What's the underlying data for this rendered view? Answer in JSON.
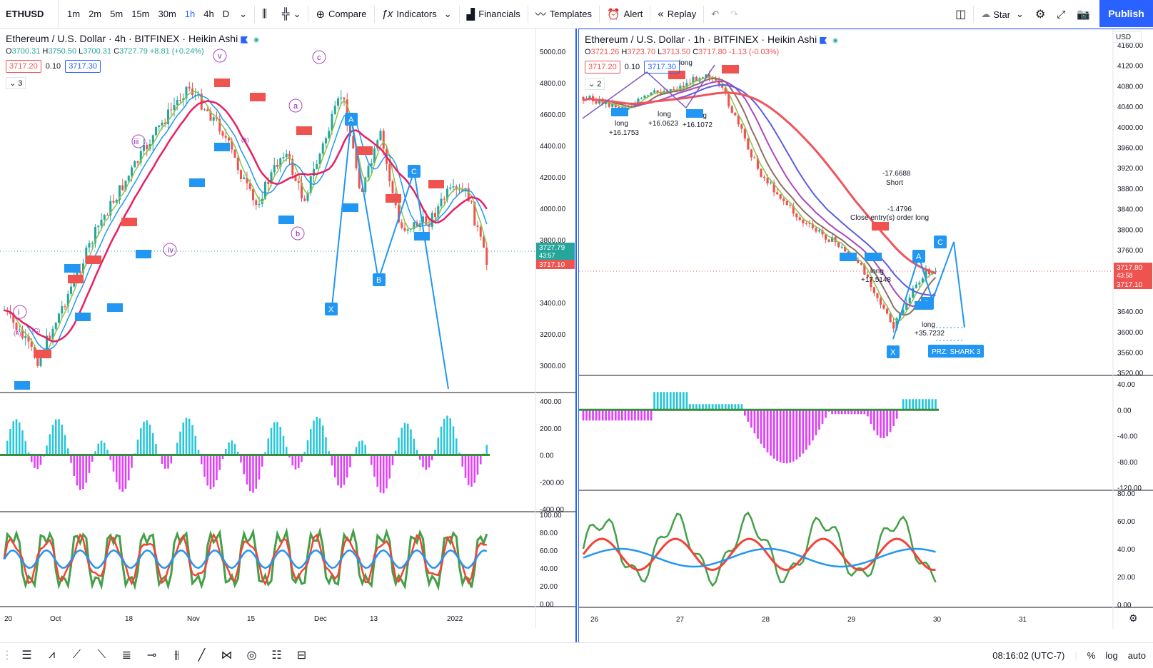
{
  "toolbar": {
    "symbol": "ETHUSD",
    "intervals": [
      "1m",
      "2m",
      "5m",
      "15m",
      "30m",
      "1h",
      "4h",
      "D"
    ],
    "active_interval": "1h",
    "compare": "Compare",
    "indicators": "Indicators",
    "financials": "Financials",
    "templates": "Templates",
    "alert": "Alert",
    "replay": "Replay",
    "star": "Star",
    "publish": "Publish"
  },
  "left_chart": {
    "title": "Ethereum / U.S. Dollar · 4h · BITFINEX · Heikin Ashi",
    "ohlc": {
      "o": "3700.31",
      "h": "3750.50",
      "l": "3700.31",
      "c": "3727.79",
      "chg": "+8.81 (+0.24%)"
    },
    "bid": "3717.20",
    "spread": "0.10",
    "ask": "3717.30",
    "indicator_count": "3",
    "price_ticks": [
      "5000.00",
      "4800.00",
      "4600.00",
      "4400.00",
      "4200.00",
      "4000.00",
      "3800.00",
      "3400.00",
      "3200.00",
      "3000.00"
    ],
    "last_price": "3727.79",
    "countdown": "43:57",
    "bid_line": "3717.10",
    "macd_ticks": [
      "400.00",
      "200.00",
      "0.00",
      "-200.00",
      "-400.00"
    ],
    "rsi_ticks": [
      "100.00",
      "80.00",
      "60.00",
      "40.00",
      "20.00",
      "0.00"
    ],
    "time_ticks": [
      "20",
      "Oct",
      "18",
      "Nov",
      "15",
      "Dec",
      "13",
      "2022"
    ],
    "wave_labels": [
      "v",
      "c",
      "iii",
      "a",
      "iv",
      "b",
      "i",
      "(A)",
      "(C)",
      "(B)"
    ],
    "pattern_labels": [
      "A",
      "B",
      "C",
      "X"
    ]
  },
  "right_chart": {
    "title": "Ethereum / U.S. Dollar · 1h · BITFINEX · Heikin Ashi",
    "ohlc": {
      "o": "3721.26",
      "h": "3723.70",
      "l": "3713.50",
      "c": "3717.80",
      "chg": "-1.13 (-0.03%)"
    },
    "bid": "3717.20",
    "spread": "0.10",
    "ask": "3717.30",
    "indicator_count": "2",
    "currency": "USD",
    "price_ticks": [
      "4160.00",
      "4120.00",
      "4080.00",
      "4040.00",
      "4000.00",
      "3960.00",
      "3920.00",
      "3880.00",
      "3840.00",
      "3800.00",
      "3760.00",
      "3640.00",
      "3600.00",
      "3560.00",
      "3520.00"
    ],
    "last_price": "3717.80",
    "countdown": "43:58",
    "bid_line": "3717.10",
    "macd_ticks": [
      "40.00",
      "0.00",
      "-40.00",
      "-80.00",
      "-120.00"
    ],
    "rsi_ticks": [
      "80.00",
      "60.00",
      "40.00",
      "20.00",
      "0.00"
    ],
    "time_ticks": [
      "26",
      "27",
      "28",
      "29",
      "30",
      "31"
    ],
    "annotations": {
      "long1": "long",
      "long1_val": "+16.1753",
      "long2": "long",
      "long2_val": "+16.0623",
      "long3": "long",
      "long3_val": "+16.1072",
      "short_val": "-17.6688",
      "short": "Short",
      "close_val": "-1.4796",
      "close_entry": "Close entry(s) order long",
      "long4": "long",
      "long4_val": "+17.5148",
      "long5": "long",
      "long5_val": "+35.7232",
      "prz": "PRZ: SHARK 3",
      "top_long": "long"
    },
    "pattern_labels": [
      "A",
      "B",
      "C",
      "X"
    ]
  },
  "bottom": {
    "clock": "08:16:02 (UTC-7)",
    "percent": "%",
    "log": "log",
    "auto": "auto"
  },
  "colors": {
    "up": "#26a69a",
    "down": "#ef5350",
    "accent": "#2962ff",
    "ma_red": "#f0545d",
    "ma_purple": "#9c27b0",
    "ma_blue": "#5b5be8",
    "rsi_green": "#43a047",
    "rsi_red": "#f44336",
    "rsi_blue": "#2196f3"
  }
}
